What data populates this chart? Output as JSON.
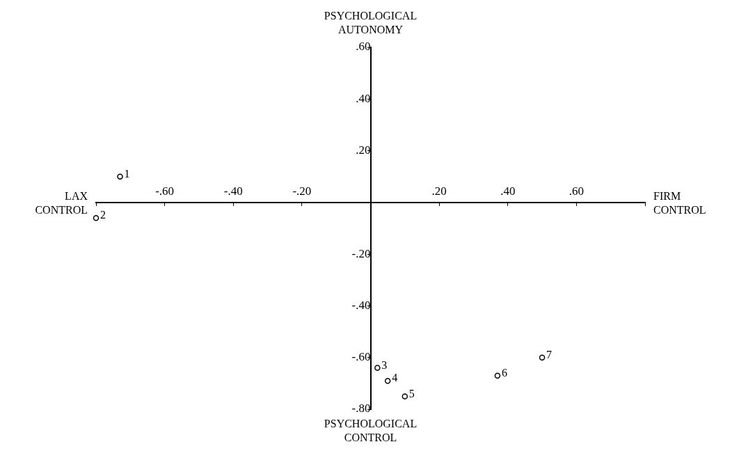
{
  "chart_data": {
    "type": "scatter",
    "annotations": [
      "FIRM CONTROL",
      "PSYCHOLOGICAL AUTONOMY",
      "LAX CONTROL",
      "PSYCHOLOGICAL CONTROL",
      {
        "text": "1",
        "x": -0.73,
        "y": 0.1
      },
      {
        "text": "2",
        "x": -0.8,
        "y": -0.06
      },
      {
        "text": "3",
        "x": 0.02,
        "y": -0.64
      },
      {
        "text": "4",
        "x": 0.05,
        "y": -0.69
      },
      {
        "text": "5",
        "x": 0.1,
        "y": -0.75
      },
      {
        "text": "6",
        "x": 0.37,
        "y": -0.67
      },
      {
        "text": "7",
        "x": 0.5,
        "y": -0.6
      }
    ],
    "x": [
      -0.73,
      -0.8,
      0.02,
      0.05,
      0.1,
      0.37,
      0.5
    ],
    "series": [
      {
        "color": "#000000",
        "values": [
          0.1,
          -0.06,
          -0.64,
          -0.69,
          -0.75,
          -0.67,
          -0.6
        ]
      }
    ],
    "xlim": [
      -0.8,
      0.8
    ],
    "xticks": [
      {
        "value": -0.8,
        "label": null
      },
      {
        "value": -0.6,
        "label": "-.60"
      },
      {
        "value": -0.4,
        "label": "-.40"
      },
      {
        "value": -0.2,
        "label": "-.20"
      },
      {
        "value": 0,
        "label": null
      },
      {
        "value": 0.2,
        "label": ".20"
      },
      {
        "value": 0.4,
        "label": ".40"
      },
      {
        "value": 0.6,
        "label": ".60"
      },
      {
        "value": 0.8,
        "label": null
      }
    ],
    "ylim": [
      -0.8,
      0.6
    ],
    "yticks": [
      {
        "value": -0.8,
        "label": "-.80"
      },
      {
        "value": -0.6,
        "label": "-.60"
      },
      {
        "value": -0.4,
        "label": "-.40"
      },
      {
        "value": -0.2,
        "label": "-.20"
      },
      {
        "value": 0,
        "label": null
      },
      {
        "value": 0.2,
        "label": ".20"
      },
      {
        "value": 0.4,
        "label": ".40"
      },
      {
        "value": 0.6,
        "label": ".60"
      }
    ],
    "grid": false,
    "legend": false,
    "marker": "circle"
  }
}
